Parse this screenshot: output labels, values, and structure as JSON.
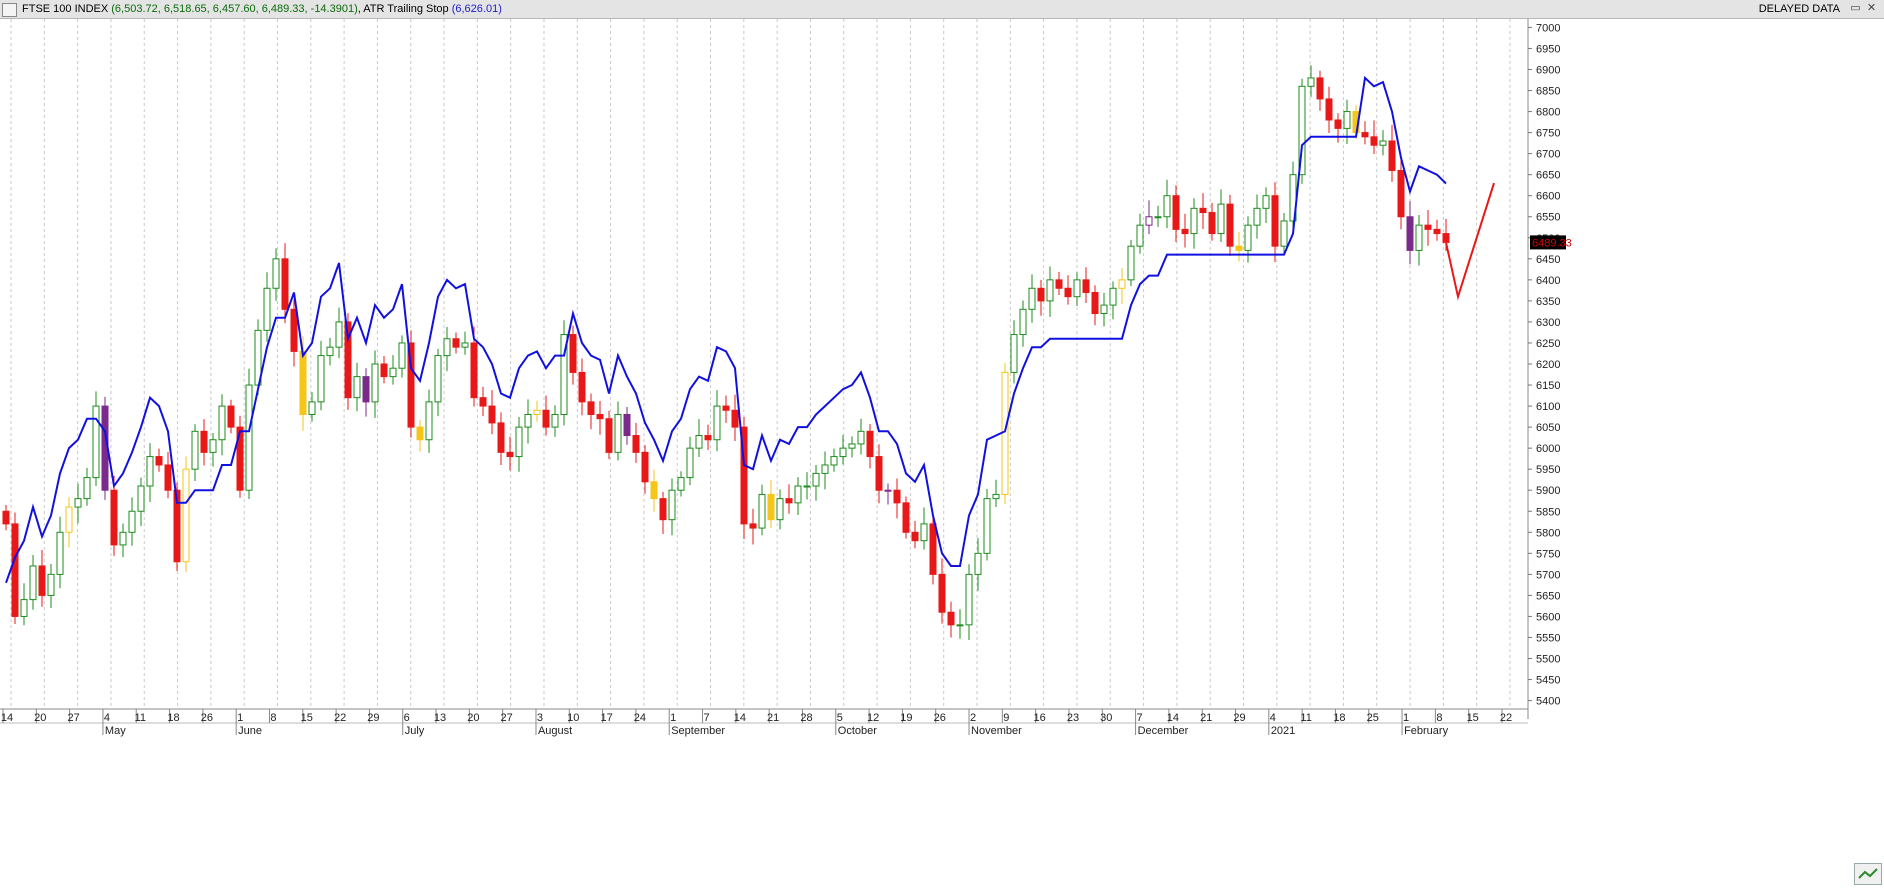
{
  "header": {
    "symbol": "FTSE 100 INDEX",
    "ohlc": "(6,503.72, 6,518.65, 6,457.60, 6,489.33, -14.3901)",
    "indicator": "ATR Trailing Stop",
    "indicator_value": "(6,626.01)",
    "delayed": "DELAYED DATA",
    "restore_label": "▭",
    "close_label": "✕"
  },
  "colors": {
    "bull": "#1e8c1e",
    "bear": "#e81818",
    "inside": "#f5c518",
    "outside": "#7a2a8a",
    "stop": "#1010e0",
    "projection": "#e81818",
    "price_tag": "#d00000",
    "label_green": "#1e8c1e",
    "label_red": "#8b1a1a",
    "label_gray": "#a8a8a8"
  },
  "chart_data": {
    "type": "candlestick",
    "title": "FTSE 100 INDEX",
    "y_range": [
      5380,
      7020
    ],
    "y_ticks": [
      5400,
      5450,
      5500,
      5550,
      5600,
      5650,
      5700,
      5750,
      5800,
      5850,
      5900,
      5950,
      6000,
      6050,
      6100,
      6150,
      6200,
      6250,
      6300,
      6350,
      6400,
      6450,
      6500,
      6550,
      6600,
      6650,
      6700,
      6750,
      6800,
      6850,
      6900,
      6950,
      7000
    ],
    "x_tick_labels": [
      "14",
      "20",
      "27",
      "4",
      "11",
      "18",
      "26",
      "1",
      "8",
      "15",
      "22",
      "29",
      "6",
      "13",
      "20",
      "27",
      "3",
      "10",
      "17",
      "24",
      "1",
      "7",
      "14",
      "21",
      "28",
      "5",
      "12",
      "19",
      "26",
      "2",
      "9",
      "16",
      "23",
      "30",
      "7",
      "14",
      "21",
      "29",
      "4",
      "11",
      "18",
      "25",
      "1",
      "8",
      "15",
      "22"
    ],
    "month_labels": [
      "May",
      "June",
      "July",
      "August",
      "September",
      "October",
      "November",
      "December",
      "2021",
      "February"
    ],
    "last_price": "6489.33",
    "close_series": [
      5820,
      5600,
      5640,
      5720,
      5650,
      5700,
      5800,
      5860,
      5880,
      5930,
      6100,
      5900,
      5770,
      5800,
      5850,
      5910,
      5980,
      5960,
      5900,
      5730,
      5950,
      6040,
      5990,
      6020,
      6100,
      6050,
      5900,
      6150,
      6280,
      6380,
      6450,
      6330,
      6230,
      6080,
      6110,
      6220,
      6240,
      6300,
      6120,
      6170,
      6110,
      6200,
      6170,
      6190,
      6250,
      6050,
      6020,
      6110,
      6220,
      6260,
      6240,
      6250,
      6120,
      6100,
      6060,
      5990,
      5980,
      6050,
      6080,
      6090,
      6050,
      6080,
      6270,
      6180,
      6110,
      6080,
      6070,
      5990,
      6080,
      6030,
      5990,
      5920,
      5880,
      5830,
      5900,
      5930,
      6000,
      6030,
      6020,
      6100,
      6090,
      6050,
      5820,
      5810,
      5890,
      5830,
      5880,
      5870,
      5910,
      5910,
      5940,
      5960,
      5980,
      6000,
      6010,
      6040,
      5980,
      5900,
      5900,
      5870,
      5800,
      5780,
      5820,
      5700,
      5610,
      5580,
      5580,
      5700,
      5750,
      5880,
      5890,
      6180,
      6270,
      6330,
      6380,
      6350,
      6400,
      6380,
      6360,
      6400,
      6370,
      6320,
      6340,
      6380,
      6400,
      6480,
      6530,
      6550,
      6550,
      6600,
      6520,
      6510,
      6570,
      6560,
      6510,
      6580,
      6480,
      6470,
      6530,
      6570,
      6600,
      6480,
      6540,
      6650,
      6860,
      6880,
      6830,
      6780,
      6760,
      6800,
      6750,
      6740,
      6720,
      6730,
      6660,
      6550,
      6470,
      6530,
      6520,
      6510,
      6489
    ]
  }
}
